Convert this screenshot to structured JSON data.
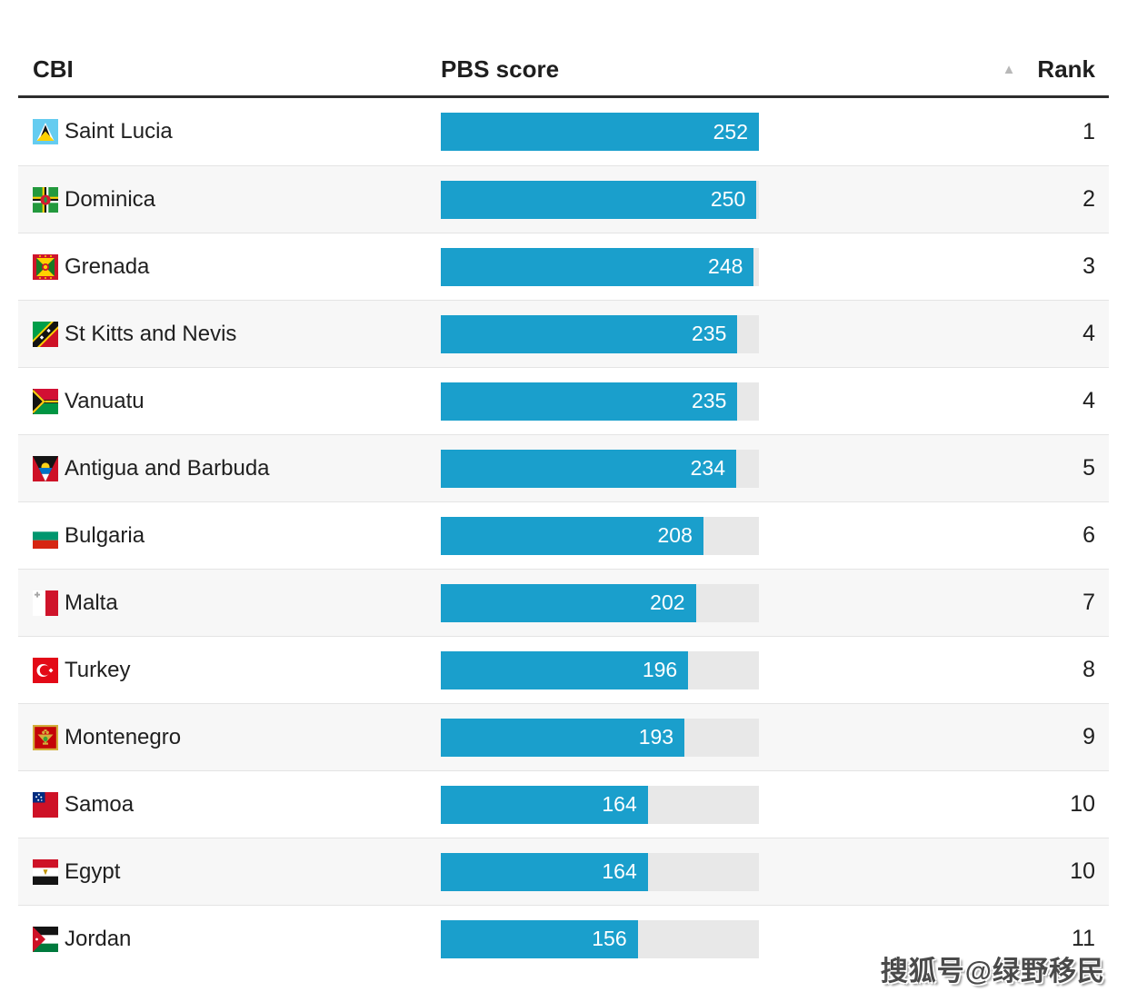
{
  "header": {
    "col_country": "CBI",
    "col_score": "PBS score",
    "col_rank": "Rank",
    "sort_icon": "triangle-up-icon"
  },
  "colors": {
    "bar_fill": "#1a9fcc",
    "bar_track": "#e8e8e8",
    "row_alt": "#f7f7f7",
    "divider": "#e4e4e4",
    "header_border": "#2d2d2d",
    "text": "#1e1e1e",
    "sort_arrow": "#b8b8b8",
    "score_text": "#ffffff"
  },
  "scale": {
    "value_max": 252
  },
  "rows": [
    {
      "country": "Saint Lucia",
      "flag_icon": "flag-saint-lucia-icon",
      "score": 252,
      "rank": 1
    },
    {
      "country": "Dominica",
      "flag_icon": "flag-dominica-icon",
      "score": 250,
      "rank": 2
    },
    {
      "country": "Grenada",
      "flag_icon": "flag-grenada-icon",
      "score": 248,
      "rank": 3
    },
    {
      "country": "St Kitts and Nevis",
      "flag_icon": "flag-st-kitts-and-nevis-icon",
      "score": 235,
      "rank": 4
    },
    {
      "country": "Vanuatu",
      "flag_icon": "flag-vanuatu-icon",
      "score": 235,
      "rank": 4
    },
    {
      "country": "Antigua and Barbuda",
      "flag_icon": "flag-antigua-and-barbuda-icon",
      "score": 234,
      "rank": 5
    },
    {
      "country": "Bulgaria",
      "flag_icon": "flag-bulgaria-icon",
      "score": 208,
      "rank": 6
    },
    {
      "country": "Malta",
      "flag_icon": "flag-malta-icon",
      "score": 202,
      "rank": 7
    },
    {
      "country": "Turkey",
      "flag_icon": "flag-turkey-icon",
      "score": 196,
      "rank": 8
    },
    {
      "country": "Montenegro",
      "flag_icon": "flag-montenegro-icon",
      "score": 193,
      "rank": 9
    },
    {
      "country": "Samoa",
      "flag_icon": "flag-samoa-icon",
      "score": 164,
      "rank": 10
    },
    {
      "country": "Egypt",
      "flag_icon": "flag-egypt-icon",
      "score": 164,
      "rank": 10
    },
    {
      "country": "Jordan",
      "flag_icon": "flag-jordan-icon",
      "score": 156,
      "rank": 11
    }
  ],
  "watermark": "搜狐号@绿野移民",
  "chart_data": {
    "type": "bar",
    "orientation": "horizontal",
    "title": "",
    "xlabel": "PBS score",
    "ylabel": "CBI",
    "categories": [
      "Saint Lucia",
      "Dominica",
      "Grenada",
      "St Kitts and Nevis",
      "Vanuatu",
      "Antigua and Barbuda",
      "Bulgaria",
      "Malta",
      "Turkey",
      "Montenegro",
      "Samoa",
      "Egypt",
      "Jordan"
    ],
    "series": [
      {
        "name": "PBS score",
        "values": [
          252,
          250,
          248,
          235,
          235,
          234,
          208,
          202,
          196,
          193,
          164,
          164,
          156
        ]
      }
    ],
    "ranks": [
      1,
      2,
      3,
      4,
      4,
      5,
      6,
      7,
      8,
      9,
      10,
      10,
      11
    ],
    "xlim": [
      0,
      252
    ],
    "grid": false,
    "legend": false,
    "bar_color": "#1a9fcc",
    "sort": "ascending-by-rank"
  }
}
